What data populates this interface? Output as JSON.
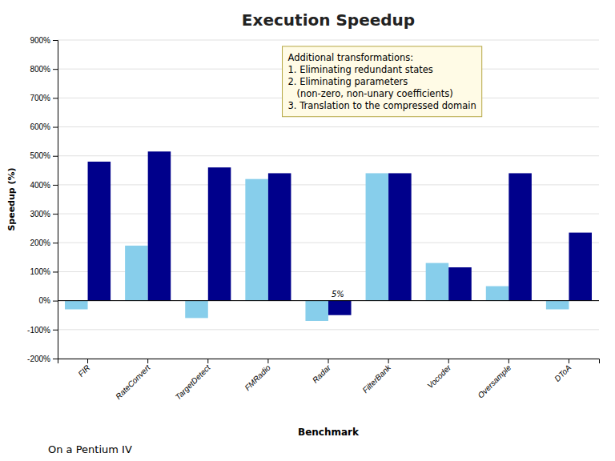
{
  "chart_data": {
    "type": "bar",
    "title": "Execution Speedup",
    "subtitle": "On a Pentium IV",
    "xlabel": "Benchmark",
    "ylabel": "Speedup (%)",
    "categories": [
      "FIR",
      "RateConvert",
      "TargetDetect",
      "FMRadio",
      "Radar",
      "FilterBank",
      "Vocoder",
      "Oversample",
      "DToA"
    ],
    "series": [
      {
        "color": "#87CEEB",
        "values": [
          -30,
          190,
          -60,
          420,
          -70,
          440,
          130,
          50,
          -30
        ]
      },
      {
        "color": "#00008B",
        "values": [
          480,
          515,
          460,
          440,
          -50,
          440,
          115,
          440,
          235
        ]
      }
    ],
    "ylim": [
      -200,
      900
    ],
    "yticks": [
      {
        "value": -200,
        "label": "-200%"
      },
      {
        "value": -100,
        "label": "-100%"
      },
      {
        "value": 0,
        "label": "0%"
      },
      {
        "value": 100,
        "label": "100%"
      },
      {
        "value": 200,
        "label": "200%"
      },
      {
        "value": 300,
        "label": "300%"
      },
      {
        "value": 400,
        "label": "400%"
      },
      {
        "value": 500,
        "label": "500%"
      },
      {
        "value": 600,
        "label": "600%"
      },
      {
        "value": 700,
        "label": "700%"
      },
      {
        "value": 800,
        "label": "800%"
      },
      {
        "value": 900,
        "label": "900%"
      }
    ],
    "grid": true,
    "annotations": [
      {
        "text": "Additional transformations:\n1. Eliminating redundant states\n2. Eliminating parameters\n   (non-zero, non-unary coefficients)\n3. Translation to the compressed domain"
      },
      {
        "text": "5%",
        "category": "Radar"
      }
    ]
  }
}
